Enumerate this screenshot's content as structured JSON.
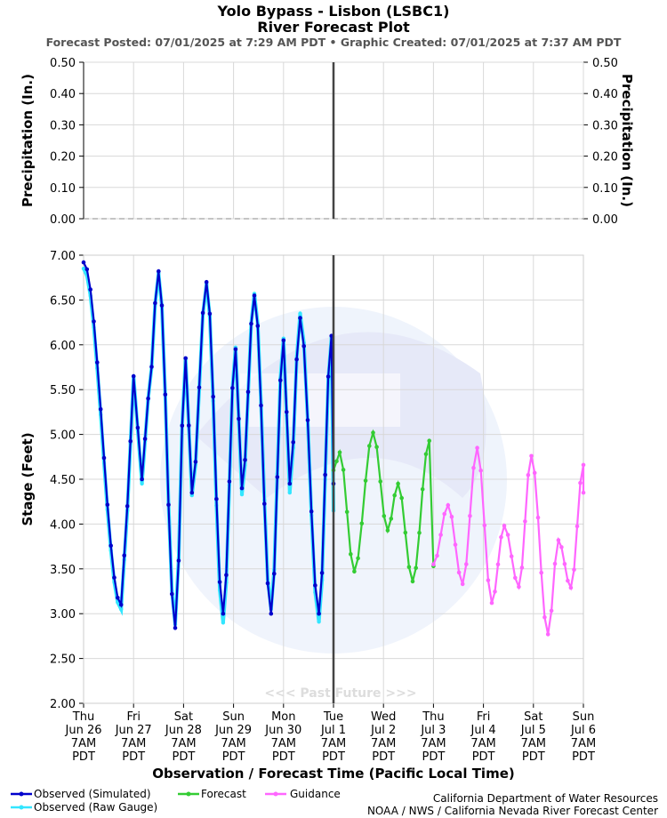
{
  "header": {
    "title": "Yolo Bypass - Lisbon (LSBC1)",
    "subtitle": "River Forecast Plot",
    "info": "Forecast Posted: 07/01/2025 at 7:29 AM PDT  •  Graphic Created: 07/01/2025 at 7:37 AM PDT"
  },
  "credits": {
    "line1": "California Department of Water Resources",
    "line2": "NOAA / NWS / California Nevada River Forecast Center"
  },
  "past_future_label": "<<< Past   Future >>>",
  "colors": {
    "observed_sim": "#0000cc",
    "observed_raw": "#33e6ff",
    "forecast": "#33cc33",
    "guidance": "#ff66ff",
    "now_line": "#444444"
  },
  "chart_data": [
    {
      "type": "line",
      "name_panel": "precipitation",
      "ylabel_left": "Precipitation (In.)",
      "ylabel_right": "Precipitation (In.)",
      "ylim": [
        0,
        0.5
      ],
      "y_ticks": [
        "0.00",
        "0.10",
        "0.20",
        "0.30",
        "0.40",
        "0.50"
      ],
      "grid": true,
      "series": [
        {
          "values": [
            0,
            0,
            0,
            0,
            0,
            0,
            0,
            0,
            0,
            0,
            0,
            0,
            0,
            0,
            0,
            0,
            0,
            0,
            0,
            0
          ]
        }
      ]
    },
    {
      "type": "line",
      "name_panel": "stage",
      "xlabel": "Observation / Forecast Time (Pacific Local Time)",
      "ylabel": "Stage (Feet)",
      "ylim": [
        2.0,
        7.0
      ],
      "y_ticks": [
        "2.00",
        "2.50",
        "3.00",
        "3.50",
        "4.00",
        "4.50",
        "5.00",
        "5.50",
        "6.00",
        "6.50",
        "7.00"
      ],
      "x_ticks": [
        [
          "Thu",
          "Jun 26",
          "7AM",
          "PDT"
        ],
        [
          "Fri",
          "Jun 27",
          "7AM",
          "PDT"
        ],
        [
          "Sat",
          "Jun 28",
          "7AM",
          "PDT"
        ],
        [
          "Sun",
          "Jun 29",
          "7AM",
          "PDT"
        ],
        [
          "Mon",
          "Jun 30",
          "7AM",
          "PDT"
        ],
        [
          "Tue",
          "Jul 1",
          "7AM",
          "PDT"
        ],
        [
          "Wed",
          "Jul 2",
          "7AM",
          "PDT"
        ],
        [
          "Thu",
          "Jul 3",
          "7AM",
          "PDT"
        ],
        [
          "Fri",
          "Jul 4",
          "7AM",
          "PDT"
        ],
        [
          "Sat",
          "Jul 5",
          "7AM",
          "PDT"
        ],
        [
          "Sun",
          "Jul 6",
          "7AM",
          "PDT"
        ]
      ],
      "x_range": [
        "2025-06-26 07:00",
        "2025-07-06 07:00"
      ],
      "now": "2025-07-01 07:00",
      "grid": true,
      "legend": [
        "Observed (Simulated)",
        "Observed (Raw Gauge)",
        "Forecast",
        "Guidance"
      ],
      "legend_position": "bottom",
      "series": [
        {
          "name": "Observed (Simulated)",
          "points": [
            [
              "2025-06-26 07:00",
              6.92
            ],
            [
              "2025-06-27 01:00",
              3.1
            ],
            [
              "2025-06-27 04:00",
              4.2
            ],
            [
              "2025-06-27 07:00",
              5.65
            ],
            [
              "2025-06-27 11:00",
              4.5
            ],
            [
              "2025-06-27 14:00",
              5.4
            ],
            [
              "2025-06-27 19:00",
              6.82
            ],
            [
              "2025-06-28 03:00",
              2.84
            ],
            [
              "2025-06-28 08:00",
              5.85
            ],
            [
              "2025-06-28 11:00",
              4.35
            ],
            [
              "2025-06-28 18:00",
              6.7
            ],
            [
              "2025-06-29 02:00",
              3.0
            ],
            [
              "2025-06-29 08:00",
              5.95
            ],
            [
              "2025-06-29 11:00",
              4.4
            ],
            [
              "2025-06-29 17:00",
              6.55
            ],
            [
              "2025-06-30 01:00",
              3.0
            ],
            [
              "2025-06-30 07:00",
              6.05
            ],
            [
              "2025-06-30 10:00",
              4.45
            ],
            [
              "2025-06-30 15:00",
              6.3
            ],
            [
              "2025-07-01 00:00",
              3.0
            ],
            [
              "2025-07-01 06:00",
              6.1
            ],
            [
              "2025-07-01 07:00",
              4.45
            ]
          ]
        },
        {
          "name": "Observed (Raw Gauge)",
          "points": [
            [
              "2025-06-26 07:00",
              6.85
            ],
            [
              "2025-06-27 01:00",
              3.05
            ],
            [
              "2025-06-27 04:00",
              4.15
            ],
            [
              "2025-06-27 07:00",
              5.65
            ],
            [
              "2025-06-27 11:00",
              4.45
            ],
            [
              "2025-06-27 14:00",
              5.4
            ],
            [
              "2025-06-27 19:00",
              6.8
            ],
            [
              "2025-06-28 03:00",
              2.88
            ],
            [
              "2025-06-28 08:00",
              5.85
            ],
            [
              "2025-06-28 11:00",
              4.32
            ],
            [
              "2025-06-28 18:00",
              6.68
            ],
            [
              "2025-06-29 02:00",
              2.9
            ],
            [
              "2025-06-29 08:00",
              5.97
            ],
            [
              "2025-06-29 11:00",
              4.33
            ],
            [
              "2025-06-29 17:00",
              6.57
            ],
            [
              "2025-06-30 01:00",
              3.05
            ],
            [
              "2025-06-30 07:00",
              6.07
            ],
            [
              "2025-06-30 10:00",
              4.35
            ],
            [
              "2025-06-30 15:00",
              6.35
            ],
            [
              "2025-07-01 00:00",
              2.91
            ],
            [
              "2025-07-01 06:00",
              6.08
            ],
            [
              "2025-07-01 07:00",
              4.15
            ]
          ]
        },
        {
          "name": "Forecast",
          "points": [
            [
              "2025-07-01 07:00",
              4.6
            ],
            [
              "2025-07-01 10:00",
              4.8
            ],
            [
              "2025-07-01 17:00",
              3.47
            ],
            [
              "2025-07-02 02:00",
              5.02
            ],
            [
              "2025-07-02 09:00",
              3.93
            ],
            [
              "2025-07-02 14:00",
              4.45
            ],
            [
              "2025-07-02 21:00",
              3.36
            ],
            [
              "2025-07-03 05:00",
              4.93
            ],
            [
              "2025-07-03 07:00",
              3.53
            ]
          ]
        },
        {
          "name": "Guidance",
          "points": [
            [
              "2025-07-03 07:00",
              3.55
            ],
            [
              "2025-07-03 14:00",
              4.21
            ],
            [
              "2025-07-03 21:00",
              3.33
            ],
            [
              "2025-07-04 04:00",
              4.85
            ],
            [
              "2025-07-04 11:00",
              3.12
            ],
            [
              "2025-07-04 17:00",
              3.98
            ],
            [
              "2025-07-05 00:00",
              3.3
            ],
            [
              "2025-07-05 06:00",
              4.76
            ],
            [
              "2025-07-05 14:00",
              2.77
            ],
            [
              "2025-07-05 19:00",
              3.82
            ],
            [
              "2025-07-06 01:00",
              3.29
            ],
            [
              "2025-07-06 07:00",
              4.66
            ],
            [
              "2025-07-06 07:00",
              4.35
            ]
          ]
        }
      ]
    }
  ]
}
